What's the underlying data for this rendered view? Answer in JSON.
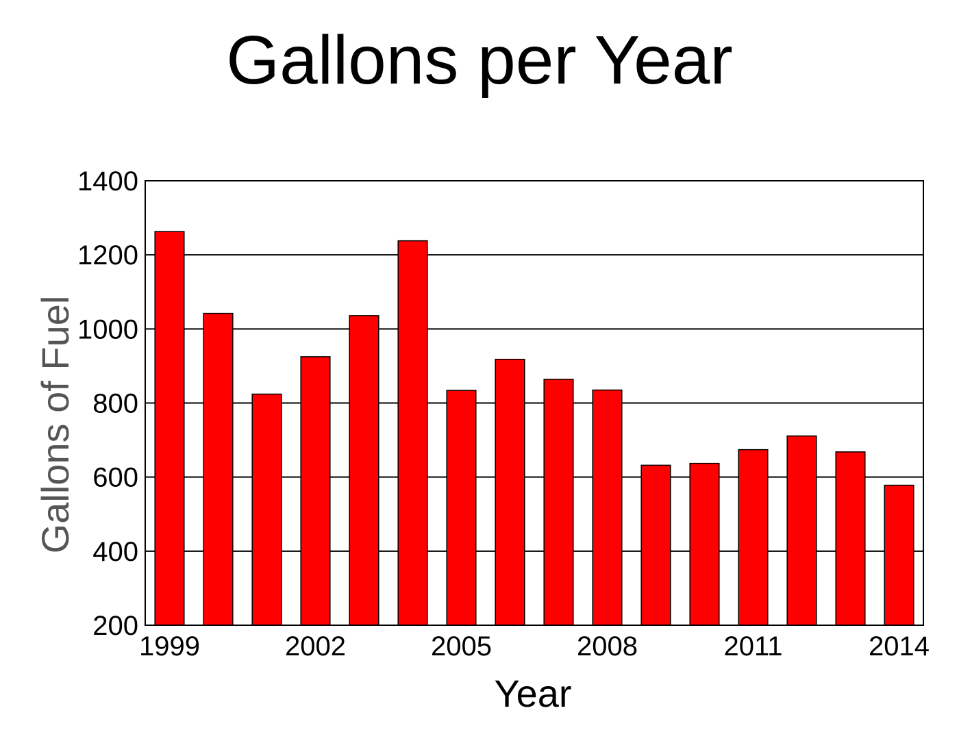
{
  "chart_data": {
    "type": "bar",
    "title": "Gallons per Year",
    "xlabel": "Year",
    "ylabel": "Gallons of Fuel",
    "categories": [
      "1999",
      "2000",
      "2001",
      "2002",
      "2003",
      "2004",
      "2005",
      "2006",
      "2007",
      "2008",
      "2009",
      "2010",
      "2011",
      "2012",
      "2013",
      "2014"
    ],
    "values": [
      1263,
      1042,
      824,
      925,
      1036,
      1238,
      834,
      918,
      864,
      835,
      632,
      637,
      674,
      711,
      668,
      578
    ],
    "x_tick_labels": [
      "1999",
      "2002",
      "2005",
      "2008",
      "2011",
      "2014"
    ],
    "y_ticks": [
      200,
      400,
      600,
      800,
      1000,
      1200,
      1400
    ],
    "ylim": [
      200,
      1400
    ],
    "grid": "horizontal",
    "legend": "none",
    "colors": {
      "bar_fill": "#ff0000",
      "bar_stroke": "#000000",
      "title": "#000000",
      "ylabel": "#555555",
      "grid": "#000000",
      "background": "#ffffff"
    }
  }
}
